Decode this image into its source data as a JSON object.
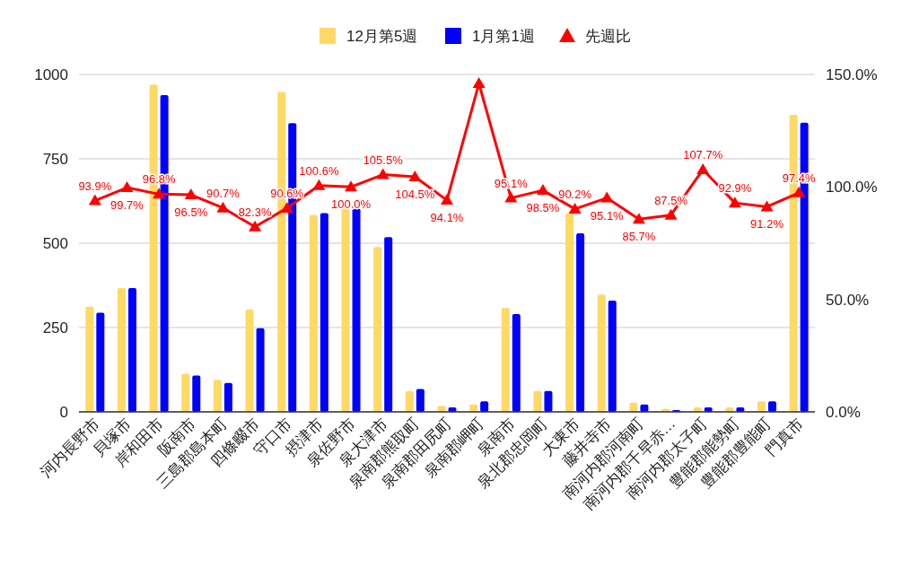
{
  "chart_data": {
    "type": "bar",
    "categories": [
      "河内長野市",
      "貝塚市",
      "岸和田市",
      "阪南市",
      "三島郡島本町",
      "四條畷市",
      "守口市",
      "摂津市",
      "泉佐野市",
      "泉大津市",
      "泉南郡熊取町",
      "泉南郡田尻町",
      "泉南郡岬町",
      "泉南市",
      "泉北郡忠岡町",
      "大東市",
      "藤井寺市",
      "南河内郡河南町",
      "南河内郡千早赤…",
      "南河内郡太子町",
      "豊能郡能勢町",
      "豊能郡豊能町",
      "門真市"
    ],
    "series": [
      {
        "name": "12月第5週",
        "color": "#ffd966",
        "values": [
          312,
          367,
          970,
          113,
          95,
          303,
          948,
          584,
          603,
          489,
          62,
          18,
          22,
          308,
          62,
          589,
          348,
          27,
          9,
          13,
          13,
          31,
          880
        ]
      },
      {
        "name": "1月第1週",
        "color": "#0000ff",
        "values": [
          294,
          367,
          939,
          108,
          86,
          248,
          856,
          589,
          603,
          518,
          68,
          13,
          31,
          290,
          62,
          529,
          330,
          22,
          5,
          13,
          13,
          31,
          857
        ]
      },
      {
        "name": "先週比",
        "color": "#ff0000",
        "type": "line",
        "axis": "y2",
        "marker": "triangle",
        "values": [
          93.9,
          99.7,
          96.8,
          96.5,
          90.7,
          82.3,
          90.6,
          100.6,
          100.0,
          105.5,
          104.5,
          94.1,
          146,
          95.1,
          98.5,
          90.2,
          95.1,
          85.7,
          87.5,
          107.7,
          92.9,
          91.2,
          97.4
        ],
        "value_labels": [
          "93.9%",
          "99.7%",
          "96.8%",
          "96.5%",
          "90.7%",
          "82.3%",
          "90.6%",
          "100.6%",
          "100.0%",
          "105.5%",
          "104.5%",
          "94.1%",
          null,
          "95.1%",
          "98.5%",
          "90.2%",
          "95.1%",
          "85.7%",
          "87.5%",
          "107.7%",
          "92.9%",
          "91.2%",
          "97.4%"
        ]
      }
    ],
    "ylim": [
      0,
      1000
    ],
    "yticks": [
      0,
      250,
      500,
      750,
      1000
    ],
    "y2lim": [
      0,
      150
    ],
    "y2ticks": [
      {
        "value": 0,
        "label": "0.0%"
      },
      {
        "value": 50,
        "label": "50.0%"
      },
      {
        "value": 100,
        "label": "100.0%"
      },
      {
        "value": 150,
        "label": "150.0%"
      }
    ],
    "grid": "y",
    "legend": "top"
  }
}
